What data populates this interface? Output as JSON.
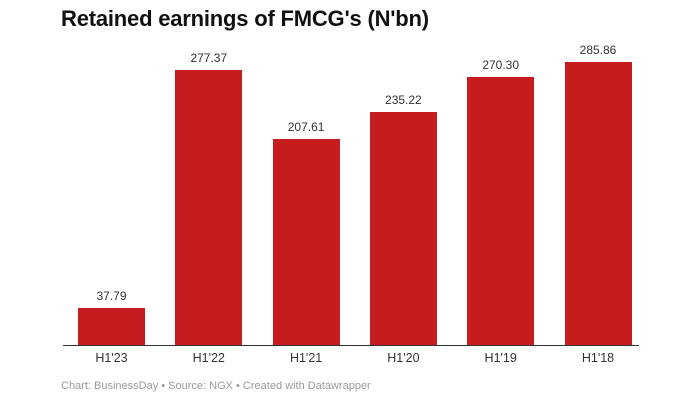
{
  "chart_data": {
    "type": "bar",
    "title": "Retained earnings of FMCG's (N'bn)",
    "categories": [
      "H1'23",
      "H1'22",
      "H1'21",
      "H1'20",
      "H1'19",
      "H1'18"
    ],
    "values": [
      37.79,
      277.37,
      207.61,
      235.22,
      270.3,
      285.86
    ],
    "value_labels": [
      "37.79",
      "277.37",
      "207.61",
      "235.22",
      "270.30",
      "285.86"
    ],
    "xlabel": "",
    "ylabel": "",
    "ylim": [
      0,
      290
    ],
    "grid": false,
    "legend": null,
    "bar_color": "#c71c1e"
  },
  "footer": "Chart: BusinessDay • Source: NGX • Created with Datawrapper"
}
